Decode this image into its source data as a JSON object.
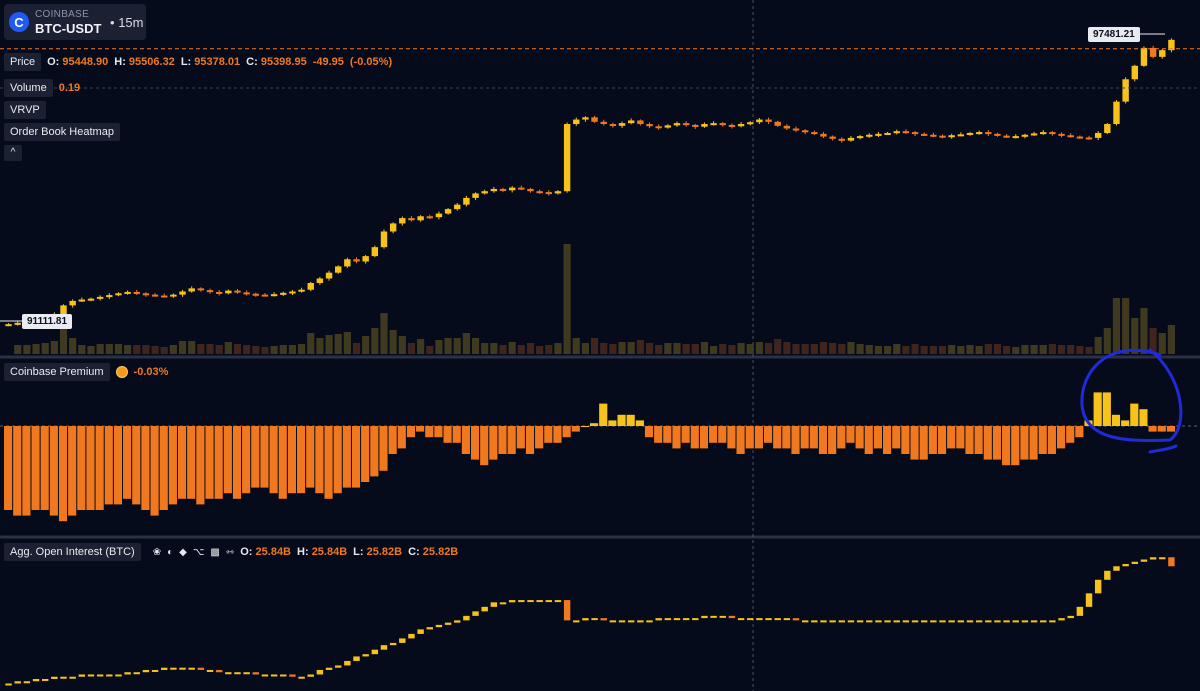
{
  "header": {
    "exchange": "COINBASE",
    "pair": "BTC-USDT",
    "separator": "•",
    "timeframe": "15m"
  },
  "price_legend": {
    "label": "Price",
    "o_label": "O:",
    "o": "95448.90",
    "h_label": "H:",
    "h": "95506.32",
    "l_label": "L:",
    "l": "95378.01",
    "c_label": "C:",
    "c": "95398.95",
    "change": "-49.95",
    "change_pct": "(-0.05%)"
  },
  "volume_legend": {
    "label": "Volume",
    "value": "0.19"
  },
  "indicators": {
    "vrvp": "VRVP",
    "heatmap": "Order Book Heatmap",
    "collapse": "^"
  },
  "price_flags": {
    "last": "97481.21",
    "low": "91111.81"
  },
  "premium_legend": {
    "label": "Coinbase Premium",
    "value": "-0.03%"
  },
  "oi_legend": {
    "label": "Agg. Open Interest (BTC)",
    "o_label": "O:",
    "o": "25.84B",
    "h_label": "H:",
    "h": "25.84B",
    "l_label": "L:",
    "l": "25.82B",
    "c_label": "C:",
    "c": "25.82B",
    "icons": [
      "exchange-1-icon",
      "exchange-2-icon",
      "binance-icon",
      "exchange-4-icon",
      "exchange-5-icon",
      "exchange-6-icon"
    ]
  },
  "colors": {
    "background": "#060b1c",
    "up": "#f7c21a",
    "down": "#f0781e",
    "annotation": "#1f2bd6"
  },
  "chart_data": [
    {
      "type": "candlestick",
      "series": [
        {
          "values": [
            91130,
            91160,
            91190,
            91230,
            91280,
            91350,
            91550,
            91650,
            91680,
            91700,
            91740,
            91780,
            91820,
            91850,
            91820,
            91790,
            91770,
            91760,
            91790,
            91860,
            91930,
            91890,
            91850,
            91820,
            91880,
            91840,
            91810,
            91790,
            91780,
            91800,
            91830,
            91860,
            91900,
            92050,
            92150,
            92280,
            92420,
            92580,
            92530,
            92650,
            92850,
            93200,
            93380,
            93500,
            93450,
            93540,
            93520,
            93600,
            93700,
            93800,
            93950,
            94050,
            94100,
            94150,
            94120,
            94180,
            94150,
            94100,
            94080,
            94050,
            94100,
            95600,
            95700,
            95750,
            95650,
            95600,
            95560,
            95620,
            95680,
            95600,
            95550,
            95520,
            95570,
            95620,
            95580,
            95540,
            95600,
            95620,
            95580,
            95550,
            95600,
            95640,
            95700,
            95650,
            95560,
            95500,
            95460,
            95420,
            95380,
            95320,
            95270,
            95230,
            95290,
            95330,
            95360,
            95380,
            95400,
            95440,
            95420,
            95380,
            95360,
            95340,
            95320,
            95350,
            95370,
            95400,
            95420,
            95380,
            95340,
            95320,
            95330,
            95360,
            95390,
            95420,
            95380,
            95350,
            95320,
            95300,
            95290,
            95400,
            95600,
            96100,
            96600,
            96900,
            97300,
            97100,
            97250,
            97480
          ]
        }
      ],
      "last_price": 97481.21,
      "low_price": 91111.81
    },
    {
      "type": "bar",
      "series": [
        {
          "values": [
            -0.15,
            -0.16,
            -0.16,
            -0.15,
            -0.15,
            -0.16,
            -0.17,
            -0.16,
            -0.15,
            -0.15,
            -0.15,
            -0.14,
            -0.14,
            -0.13,
            -0.14,
            -0.15,
            -0.16,
            -0.15,
            -0.14,
            -0.13,
            -0.13,
            -0.14,
            -0.13,
            -0.13,
            -0.12,
            -0.13,
            -0.12,
            -0.11,
            -0.11,
            -0.12,
            -0.13,
            -0.12,
            -0.12,
            -0.11,
            -0.12,
            -0.13,
            -0.12,
            -0.11,
            -0.11,
            -0.1,
            -0.09,
            -0.08,
            -0.05,
            -0.04,
            -0.02,
            -0.01,
            -0.02,
            -0.02,
            -0.03,
            -0.03,
            -0.05,
            -0.06,
            -0.07,
            -0.06,
            -0.05,
            -0.05,
            -0.04,
            -0.05,
            -0.04,
            -0.03,
            -0.03,
            -0.02,
            -0.01,
            0.0,
            0.005,
            0.04,
            0.01,
            0.02,
            0.02,
            0.01,
            -0.02,
            -0.03,
            -0.03,
            -0.04,
            -0.03,
            -0.04,
            -0.04,
            -0.03,
            -0.03,
            -0.04,
            -0.05,
            -0.04,
            -0.04,
            -0.03,
            -0.04,
            -0.04,
            -0.05,
            -0.04,
            -0.04,
            -0.05,
            -0.05,
            -0.04,
            -0.03,
            -0.04,
            -0.05,
            -0.04,
            -0.05,
            -0.04,
            -0.05,
            -0.06,
            -0.06,
            -0.05,
            -0.05,
            -0.04,
            -0.04,
            -0.05,
            -0.05,
            -0.06,
            -0.06,
            -0.07,
            -0.07,
            -0.06,
            -0.06,
            -0.05,
            -0.05,
            -0.04,
            -0.03,
            -0.02,
            0.01,
            0.06,
            0.06,
            0.02,
            0.01,
            0.04,
            0.03,
            -0.01,
            -0.01,
            -0.01
          ]
        }
      ]
    },
    {
      "type": "candlestick",
      "series": [
        {
          "values": [
            25.56,
            25.565,
            25.565,
            25.57,
            25.57,
            25.575,
            25.575,
            25.575,
            25.58,
            25.58,
            25.58,
            25.58,
            25.58,
            25.585,
            25.585,
            25.59,
            25.59,
            25.595,
            25.595,
            25.595,
            25.595,
            25.59,
            25.59,
            25.585,
            25.585,
            25.585,
            25.585,
            25.58,
            25.58,
            25.58,
            25.58,
            25.575,
            25.575,
            25.58,
            25.59,
            25.595,
            25.6,
            25.61,
            25.62,
            25.625,
            25.635,
            25.645,
            25.65,
            25.66,
            25.67,
            25.68,
            25.685,
            25.69,
            25.695,
            25.7,
            25.71,
            25.72,
            25.73,
            25.74,
            25.74,
            25.745,
            25.745,
            25.745,
            25.745,
            25.745,
            25.745,
            25.7,
            25.7,
            25.705,
            25.705,
            25.7,
            25.7,
            25.7,
            25.7,
            25.7,
            25.7,
            25.705,
            25.705,
            25.705,
            25.705,
            25.705,
            25.71,
            25.71,
            25.71,
            25.705,
            25.705,
            25.705,
            25.705,
            25.705,
            25.705,
            25.705,
            25.7,
            25.7,
            25.7,
            25.7,
            25.7,
            25.7,
            25.7,
            25.7,
            25.7,
            25.7,
            25.7,
            25.7,
            25.7,
            25.7,
            25.7,
            25.7,
            25.7,
            25.7,
            25.7,
            25.7,
            25.7,
            25.7,
            25.7,
            25.7,
            25.7,
            25.7,
            25.7,
            25.7,
            25.7,
            25.705,
            25.71,
            25.73,
            25.76,
            25.79,
            25.81,
            25.82,
            25.825,
            25.83,
            25.835,
            25.84,
            25.84,
            25.82
          ]
        }
      ]
    }
  ]
}
